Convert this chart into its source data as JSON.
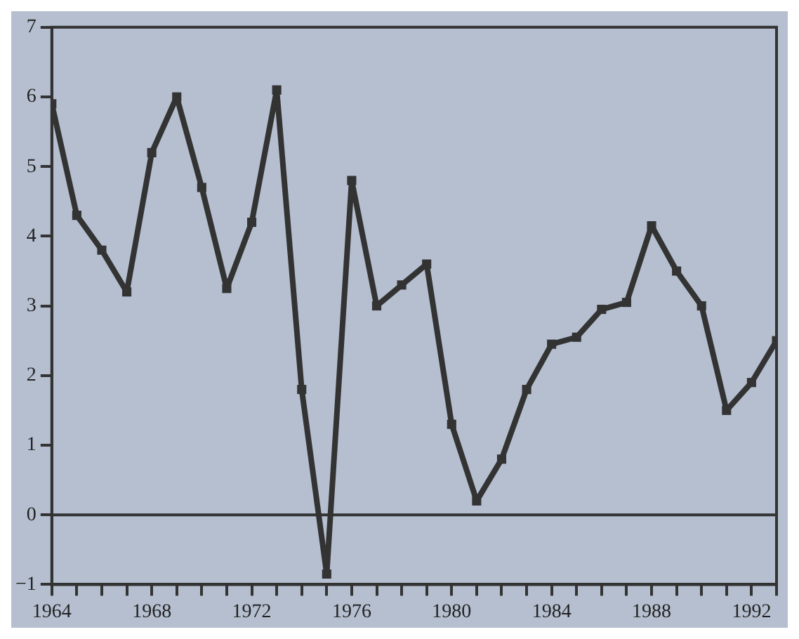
{
  "chart_data": {
    "type": "line",
    "x": [
      1964,
      1965,
      1966,
      1967,
      1968,
      1969,
      1970,
      1971,
      1972,
      1973,
      1974,
      1975,
      1976,
      1977,
      1978,
      1979,
      1980,
      1981,
      1982,
      1983,
      1984,
      1985,
      1986,
      1987,
      1988,
      1989,
      1990,
      1991,
      1992,
      1993
    ],
    "series": [
      {
        "color": "#333333",
        "values": [
          5.9,
          4.3,
          3.8,
          3.2,
          5.2,
          6.0,
          4.7,
          3.25,
          4.2,
          6.1,
          1.8,
          -0.85,
          4.8,
          3.0,
          3.3,
          3.6,
          1.3,
          0.2,
          0.8,
          1.8,
          2.45,
          2.55,
          2.95,
          3.05,
          4.15,
          3.5,
          3.0,
          1.5,
          1.9,
          2.5
        ]
      }
    ],
    "xlim": [
      1964,
      1993
    ],
    "xticks": [
      1964,
      {
        "value": 1965,
        "label": null
      },
      {
        "value": 1966,
        "label": null
      },
      {
        "value": 1967,
        "label": null
      },
      1968,
      {
        "value": 1969,
        "label": null
      },
      {
        "value": 1970,
        "label": null
      },
      {
        "value": 1971,
        "label": null
      },
      1972,
      {
        "value": 1973,
        "label": null
      },
      {
        "value": 1974,
        "label": null
      },
      {
        "value": 1975,
        "label": null
      },
      1976,
      {
        "value": 1977,
        "label": null
      },
      {
        "value": 1978,
        "label": null
      },
      {
        "value": 1979,
        "label": null
      },
      1980,
      {
        "value": 1981,
        "label": null
      },
      {
        "value": 1982,
        "label": null
      },
      {
        "value": 1983,
        "label": null
      },
      1984,
      {
        "value": 1985,
        "label": null
      },
      {
        "value": 1986,
        "label": null
      },
      {
        "value": 1987,
        "label": null
      },
      1988,
      {
        "value": 1989,
        "label": null
      },
      {
        "value": 1990,
        "label": null
      },
      {
        "value": 1991,
        "label": null
      },
      1992,
      {
        "value": 1993,
        "label": null
      }
    ],
    "ylim": [
      -1,
      7
    ],
    "yticks": [
      {
        "value": -1,
        "label": "−1"
      },
      0,
      1,
      2,
      3,
      4,
      5,
      6,
      7
    ],
    "ref_lines": [
      {
        "axis": "y",
        "value": 0,
        "color": "#333333"
      }
    ],
    "grid": false,
    "legend": false,
    "marker": "square",
    "line_style": "solid"
  }
}
